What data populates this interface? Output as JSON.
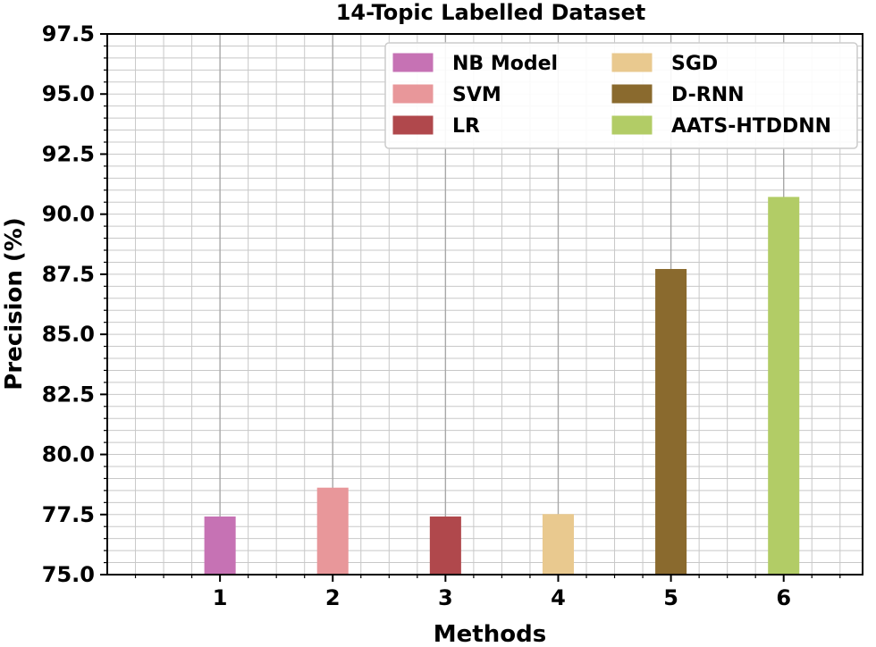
{
  "chart_data": {
    "type": "bar",
    "title": "14-Topic Labelled Dataset",
    "xlabel": "Methods",
    "ylabel": "Precision (%)",
    "categories": [
      "1",
      "2",
      "3",
      "4",
      "5",
      "6"
    ],
    "ylim": [
      75.0,
      97.5
    ],
    "yticks": [
      "75.0",
      "77.5",
      "80.0",
      "82.5",
      "85.0",
      "87.5",
      "90.0",
      "92.5",
      "95.0",
      "97.5"
    ],
    "grid": true,
    "legend_position": "top-right",
    "series": [
      {
        "name": "NB Model",
        "x": 1,
        "value": 77.4,
        "color": "#c672b4"
      },
      {
        "name": "SVM",
        "x": 2,
        "value": 78.6,
        "color": "#e8979a"
      },
      {
        "name": "LR",
        "x": 3,
        "value": 77.4,
        "color": "#b0484c"
      },
      {
        "name": "SGD",
        "x": 4,
        "value": 77.5,
        "color": "#e9c98f"
      },
      {
        "name": "D-RNN",
        "x": 5,
        "value": 87.7,
        "color": "#8a6a2e"
      },
      {
        "name": "AATS-HTDDNN",
        "x": 6,
        "value": 90.7,
        "color": "#b2cc66"
      }
    ]
  }
}
